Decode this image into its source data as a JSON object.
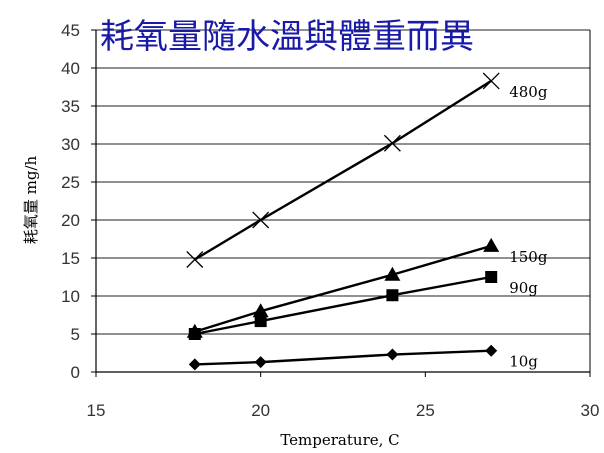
{
  "chart_data": {
    "type": "line",
    "title": "耗氧量隨水溫與體重而異",
    "xlabel": "Temperature, C",
    "ylabel": "耗氧量 mg/h",
    "xlim": [
      15,
      30
    ],
    "ylim": [
      0,
      45
    ],
    "xticks": [
      "15",
      "20",
      "25",
      "30"
    ],
    "yticks": [
      "0",
      "5",
      "10",
      "15",
      "20",
      "25",
      "30",
      "35",
      "40",
      "45"
    ],
    "grid": true,
    "series": [
      {
        "name": "480g",
        "marker": "x",
        "x": [
          18,
          20,
          24,
          27
        ],
        "y": [
          14.8,
          20.0,
          30.1,
          38.3
        ]
      },
      {
        "name": "150g",
        "marker": "triangle",
        "x": [
          18,
          20,
          24,
          27
        ],
        "y": [
          5.3,
          8.0,
          12.8,
          16.6
        ]
      },
      {
        "name": "90g",
        "marker": "square",
        "x": [
          18,
          20,
          24,
          27
        ],
        "y": [
          5.0,
          6.7,
          10.1,
          12.5
        ]
      },
      {
        "name": "10g",
        "marker": "diamond",
        "x": [
          18,
          20,
          24,
          27
        ],
        "y": [
          1.0,
          1.3,
          2.3,
          2.8
        ]
      }
    ],
    "colors": {
      "title": "#1a1aa8",
      "line": "#000000",
      "grid": "#222222"
    }
  }
}
